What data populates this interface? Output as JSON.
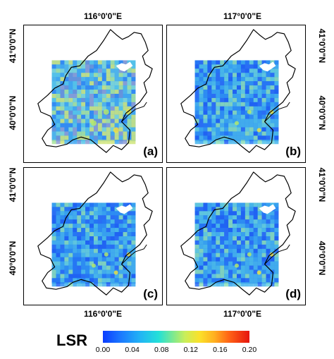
{
  "lon_labels": [
    "116°0'0\"E",
    "117°0'0\"E"
  ],
  "lat_labels": [
    "41°0'0\"N",
    "40°0'0\"N"
  ],
  "panels": [
    {
      "label": "(a)",
      "tone": "mixed"
    },
    {
      "label": "(b)",
      "tone": "blue"
    },
    {
      "label": "(c)",
      "tone": "blue"
    },
    {
      "label": "(d)",
      "tone": "blue"
    }
  ],
  "colorbar": {
    "title": "LSR",
    "ticks": [
      "0.00",
      "0.04",
      "0.08",
      "0.12",
      "0.16",
      "0.20"
    ],
    "colors": {
      "low": "#0b3cff",
      "mid": "#23e0d8",
      "high": "#e6150e"
    }
  }
}
